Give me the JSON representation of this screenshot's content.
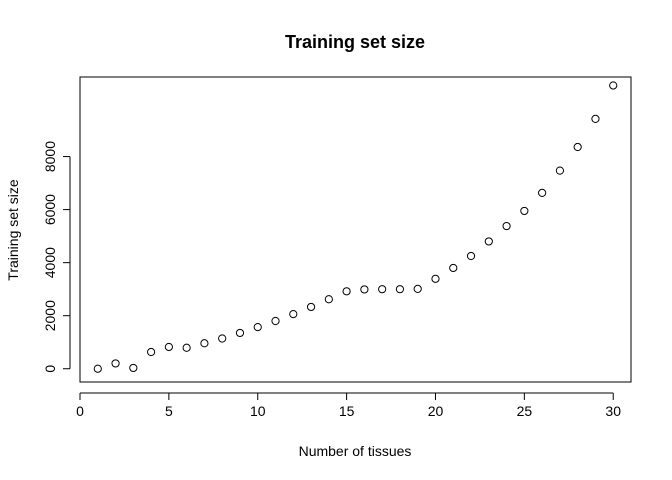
{
  "chart_data": {
    "type": "scatter",
    "title": "Training set size",
    "xlabel": "Number of tissues",
    "ylabel": "Training set size",
    "x": [
      1,
      2,
      3,
      4,
      5,
      6,
      7,
      8,
      9,
      10,
      11,
      12,
      13,
      14,
      15,
      16,
      17,
      18,
      19,
      20,
      21,
      22,
      23,
      24,
      25,
      26,
      27,
      28,
      29,
      30
    ],
    "y": [
      0,
      200,
      30,
      630,
      820,
      790,
      960,
      1140,
      1350,
      1570,
      1800,
      2060,
      2330,
      2620,
      2920,
      2990,
      3000,
      3000,
      3010,
      3390,
      3800,
      4250,
      4800,
      5380,
      5950,
      6630,
      7470,
      8360,
      9420,
      10680
    ],
    "xlim": [
      0,
      31
    ],
    "ylim": [
      -500,
      11000
    ],
    "x_ticks": [
      0,
      5,
      10,
      15,
      20,
      25,
      30
    ],
    "y_ticks": [
      0,
      2000,
      4000,
      6000,
      8000
    ],
    "x_tick_labels": [
      "0",
      "5",
      "10",
      "15",
      "20",
      "25",
      "30"
    ],
    "y_tick_labels": [
      "0",
      "2000",
      "4000",
      "6000",
      "8000"
    ],
    "grid": false,
    "marker": "open-circle"
  }
}
